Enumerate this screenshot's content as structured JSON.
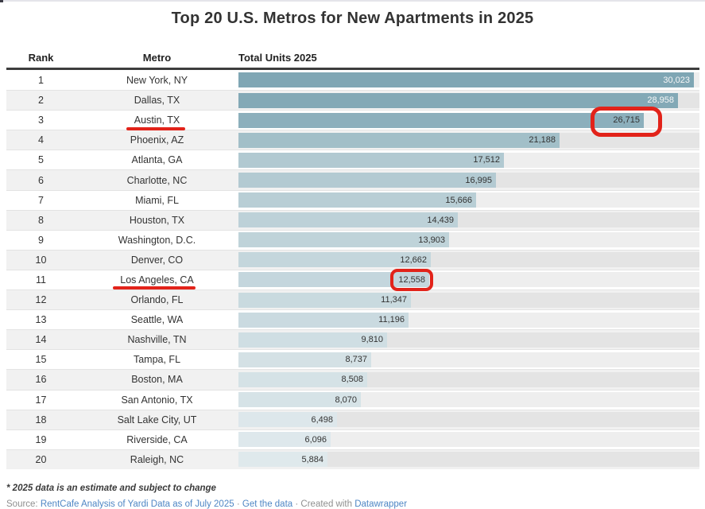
{
  "title": "Top 20 U.S. Metros for New Apartments in 2025",
  "columns": {
    "rank": "Rank",
    "metro": "Metro",
    "units": "Total Units 2025"
  },
  "rows": [
    {
      "rank": "1",
      "metro": "New York, NY",
      "units": 30023,
      "units_label": "30,023"
    },
    {
      "rank": "2",
      "metro": "Dallas, TX",
      "units": 28958,
      "units_label": "28,958"
    },
    {
      "rank": "3",
      "metro": "Austin, TX",
      "units": 26715,
      "units_label": "26,715"
    },
    {
      "rank": "4",
      "metro": "Phoenix, AZ",
      "units": 21188,
      "units_label": "21,188"
    },
    {
      "rank": "5",
      "metro": "Atlanta, GA",
      "units": 17512,
      "units_label": "17,512"
    },
    {
      "rank": "6",
      "metro": "Charlotte, NC",
      "units": 16995,
      "units_label": "16,995"
    },
    {
      "rank": "7",
      "metro": "Miami, FL",
      "units": 15666,
      "units_label": "15,666"
    },
    {
      "rank": "8",
      "metro": "Houston, TX",
      "units": 14439,
      "units_label": "14,439"
    },
    {
      "rank": "9",
      "metro": "Washington, D.C.",
      "units": 13903,
      "units_label": "13,903"
    },
    {
      "rank": "10",
      "metro": "Denver, CO",
      "units": 12662,
      "units_label": "12,662"
    },
    {
      "rank": "11",
      "metro": "Los Angeles, CA",
      "units": 12558,
      "units_label": "12,558"
    },
    {
      "rank": "12",
      "metro": "Orlando, FL",
      "units": 11347,
      "units_label": "11,347"
    },
    {
      "rank": "13",
      "metro": "Seattle, WA",
      "units": 11196,
      "units_label": "11,196"
    },
    {
      "rank": "14",
      "metro": "Nashville, TN",
      "units": 9810,
      "units_label": "9,810"
    },
    {
      "rank": "15",
      "metro": "Tampa, FL",
      "units": 8737,
      "units_label": "8,737"
    },
    {
      "rank": "16",
      "metro": "Boston, MA",
      "units": 8508,
      "units_label": "8,508"
    },
    {
      "rank": "17",
      "metro": "San Antonio, TX",
      "units": 8070,
      "units_label": "8,070"
    },
    {
      "rank": "18",
      "metro": "Salt Lake City, UT",
      "units": 6498,
      "units_label": "6,498"
    },
    {
      "rank": "19",
      "metro": "Riverside, CA",
      "units": 6096,
      "units_label": "6,096"
    },
    {
      "rank": "20",
      "metro": "Raleigh, NC",
      "units": 5884,
      "units_label": "5,884"
    }
  ],
  "chart_data": {
    "type": "bar",
    "title": "Top 20 U.S. Metros for New Apartments in 2025",
    "orientation": "horizontal",
    "categories": [
      "New York, NY",
      "Dallas, TX",
      "Austin, TX",
      "Phoenix, AZ",
      "Atlanta, GA",
      "Charlotte, NC",
      "Miami, FL",
      "Houston, TX",
      "Washington, D.C.",
      "Denver, CO",
      "Los Angeles, CA",
      "Orlando, FL",
      "Seattle, WA",
      "Nashville, TN",
      "Tampa, FL",
      "Boston, MA",
      "San Antonio, TX",
      "Salt Lake City, UT",
      "Riverside, CA",
      "Raleigh, NC"
    ],
    "values": [
      30023,
      28958,
      26715,
      21188,
      17512,
      16995,
      15666,
      14439,
      13903,
      12662,
      12558,
      11347,
      11196,
      9810,
      8737,
      8508,
      8070,
      6498,
      6096,
      5884
    ],
    "xlabel": "Total Units 2025",
    "ylabel": "Metro",
    "value_range": [
      0,
      30023
    ],
    "grid": false,
    "legend": false,
    "bar_color_scale": {
      "high": "#7fa6b4",
      "low": "#dfe9ec"
    }
  },
  "annotations": {
    "underlined_metros": [
      "Austin, TX",
      "Los Angeles, CA"
    ],
    "circled_values": [
      "26,715",
      "12,558"
    ],
    "color": "#e2231a"
  },
  "footnote": "* 2025 data is an estimate and subject to change",
  "source": {
    "prefix": "Source:",
    "source_link": "RentCafe Analysis of Yardi Data as of July 2025",
    "separator": "·",
    "get_data_link": "Get the data",
    "created_with": "Created with",
    "tool_link": "Datawrapper"
  },
  "colors": {
    "bar_dark": "#7fa6b4",
    "bar_light": "#dfe9ec",
    "value_max": 30023,
    "value_min": 5884,
    "annotation_red": "#e2231a"
  }
}
